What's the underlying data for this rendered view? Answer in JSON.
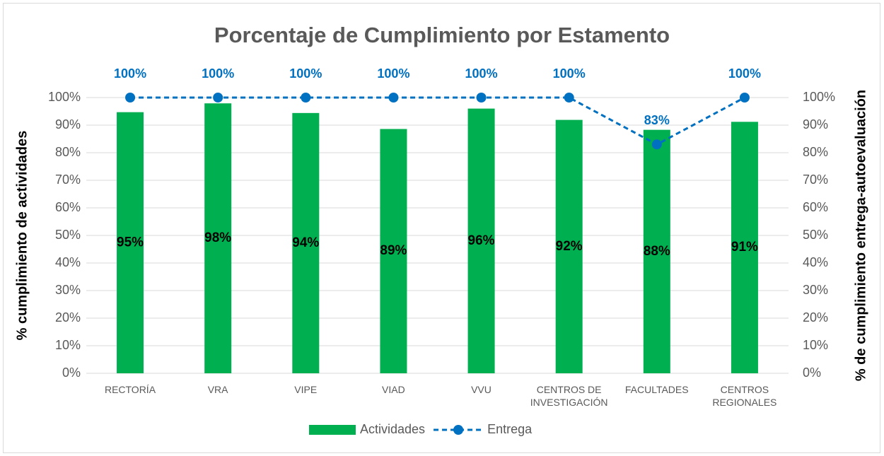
{
  "chart_data": {
    "type": "bar",
    "title": "Porcentaje de Cumplimiento por Estamento",
    "y_label": "% cumplimiento de actividades",
    "y2_label": "% de cumplimiento entrega-autoevaluación",
    "categories": [
      "RECTORÍA",
      "VRA",
      "VIPE",
      "VIAD",
      "VVU",
      "CENTROS DE INVESTIGACIÓN",
      "FACULTADES",
      "CENTROS REGIONALES"
    ],
    "series": [
      {
        "name": "Actividades",
        "color": "#00b050",
        "values": [
          94.7,
          97.9,
          94.4,
          88.6,
          96,
          91.9,
          88.3,
          91.2
        ],
        "value_labels": [
          "95%",
          "98%",
          "94%",
          "89%",
          "96%",
          "92%",
          "88%",
          "91%"
        ]
      },
      {
        "name": "Entrega",
        "type": "line",
        "axis": "y2",
        "color": "#0070c0",
        "values": [
          100,
          100,
          100,
          100,
          100,
          100,
          83,
          100
        ],
        "value_labels": [
          "100%",
          "100%",
          "100%",
          "100%",
          "100%",
          "100%",
          "83%",
          "100%"
        ]
      }
    ],
    "ylim": [
      0,
      100
    ],
    "yticks": [
      {
        "value": 0,
        "label": "0%"
      },
      {
        "value": 10,
        "label": "10%"
      },
      {
        "value": 20,
        "label": "20%"
      },
      {
        "value": 30,
        "label": "30%"
      },
      {
        "value": 40,
        "label": "40%"
      },
      {
        "value": 50,
        "label": "50%"
      },
      {
        "value": 60,
        "label": "60%"
      },
      {
        "value": 70,
        "label": "70%"
      },
      {
        "value": 80,
        "label": "80%"
      },
      {
        "value": 90,
        "label": "90%"
      },
      {
        "value": 100,
        "label": "100%"
      }
    ],
    "y2lim": [
      0,
      100
    ],
    "y2ticks": [
      {
        "value": 0,
        "label": "0%"
      },
      {
        "value": 10,
        "label": "10%"
      },
      {
        "value": 20,
        "label": "20%"
      },
      {
        "value": 30,
        "label": "30%"
      },
      {
        "value": 40,
        "label": "40%"
      },
      {
        "value": 50,
        "label": "50%"
      },
      {
        "value": 60,
        "label": "60%"
      },
      {
        "value": 70,
        "label": "70%"
      },
      {
        "value": 80,
        "label": "80%"
      },
      {
        "value": 90,
        "label": "90%"
      },
      {
        "value": 100,
        "label": "100%"
      }
    ],
    "grid": true,
    "legend": "bottom"
  }
}
